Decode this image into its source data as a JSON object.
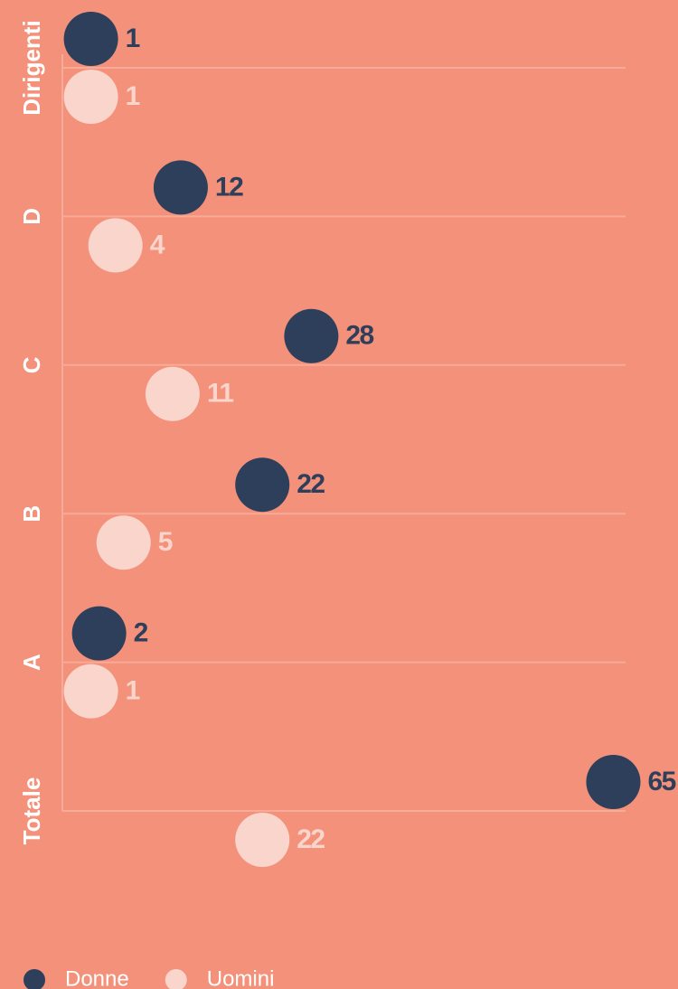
{
  "chart_data": {
    "type": "dot",
    "categories": [
      "Dirigenti",
      "D",
      "C",
      "B",
      "A",
      "Totale"
    ],
    "series": [
      {
        "name": "Donne",
        "color": "#2d3f5a",
        "values": [
          1,
          12,
          28,
          22,
          2,
          65
        ]
      },
      {
        "name": "Uomini",
        "color": "#f9d5cc",
        "values": [
          1,
          4,
          11,
          5,
          1,
          22
        ]
      }
    ],
    "xlim": [
      -2.5,
      66.5
    ],
    "grid": true,
    "legend": "bottom-left"
  }
}
